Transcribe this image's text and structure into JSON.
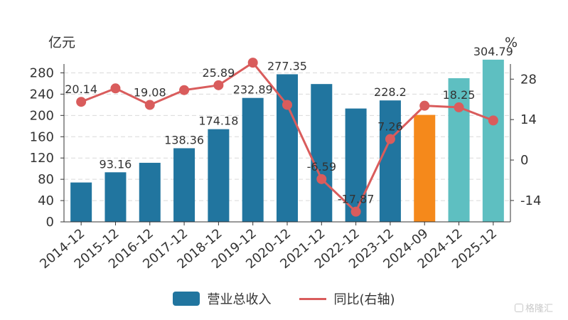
{
  "chart_data": {
    "type": "bar",
    "categories": [
      "2014-12",
      "2015-12",
      "2016-12",
      "2017-12",
      "2018-12",
      "2019-12",
      "2020-12",
      "2021-12",
      "2022-12",
      "2023-12",
      "2024-09",
      "2024-12",
      "2025-12"
    ],
    "series": [
      {
        "name": "营业总收入",
        "type": "bar",
        "values": [
          74,
          93.16,
          111,
          138.36,
          174.18,
          232.89,
          277.35,
          259,
          213,
          228.2,
          201,
          270,
          304.79
        ],
        "colors": [
          "#21759f",
          "#21759f",
          "#21759f",
          "#21759f",
          "#21759f",
          "#21759f",
          "#21759f",
          "#21759f",
          "#21759f",
          "#21759f",
          "#f5891b",
          "#5ebfc1",
          "#5ebfc1"
        ],
        "labels": [
          "",
          "93.16",
          "",
          "138.36",
          "174.18",
          "232.89",
          "277.35",
          "",
          "",
          "228.2",
          "",
          "",
          "304.79"
        ]
      },
      {
        "name": "同比(右轴)",
        "type": "line",
        "axis": "right",
        "color": "#d95c5c",
        "values": [
          20.14,
          24.8,
          19.08,
          24.2,
          25.89,
          33.7,
          19.1,
          -6.59,
          -17.87,
          7.26,
          18.8,
          18.25,
          13.7
        ],
        "labels": [
          "20.14",
          "",
          "19.08",
          "",
          "25.89",
          "",
          "",
          "-6.59",
          "-17.87",
          "7.26",
          "",
          "18.25",
          ""
        ]
      }
    ],
    "yleft": {
      "label": "亿元",
      "ticks": [
        "0",
        "40",
        "80",
        "120",
        "160",
        "200",
        "240",
        "280"
      ],
      "range": [
        0,
        310
      ]
    },
    "yright": {
      "label": "%",
      "ticks": [
        "-14",
        "0",
        "14",
        "28"
      ],
      "range": [
        -21.4,
        35.7
      ]
    },
    "grid": true,
    "legend_position": "bottom-center"
  },
  "legend": {
    "bar_label": "营业总收入",
    "line_label": "同比(右轴)",
    "bar_color": "#21759f",
    "line_color": "#d95c5c"
  },
  "watermark": {
    "text": "格隆汇"
  }
}
